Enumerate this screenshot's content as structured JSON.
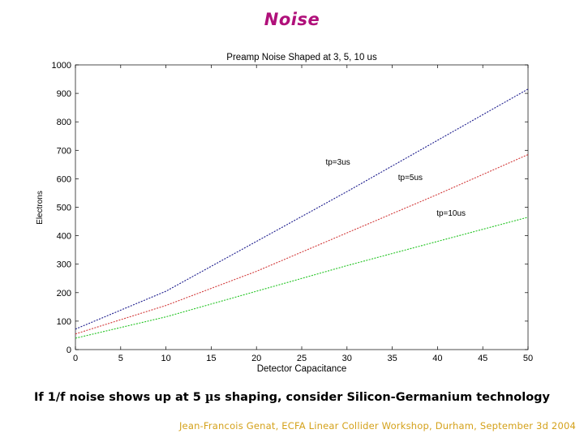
{
  "slide": {
    "title": "Noise",
    "caption_before": "If 1/f noise shows up at 5 ",
    "caption_mu": "µ",
    "caption_after": "s shaping, consider Silicon-Germanium technology",
    "footer": "Jean-Francois Genat, ECFA Linear Collider Workshop, Durham, September 3d 2004"
  },
  "colors": {
    "title": "#b0107a",
    "footer": "#d4a11a",
    "tp3": "#1a1a8c",
    "tp5": "#d23a3a",
    "tp10": "#22c422"
  },
  "chart_data": {
    "type": "line",
    "title": "Preamp  Noise Shaped at 3, 5, 10 us",
    "xlabel": "Detector Capacitance",
    "ylabel": "Electrons",
    "xlim": [
      0,
      50
    ],
    "ylim": [
      0,
      1000
    ],
    "xticks": [
      0,
      5,
      10,
      15,
      20,
      25,
      30,
      35,
      40,
      45,
      50
    ],
    "yticks": [
      0,
      100,
      200,
      300,
      400,
      500,
      600,
      700,
      800,
      900,
      1000
    ],
    "grid": false,
    "series": [
      {
        "name": "tp=3us",
        "label": "tp=3us",
        "color": "#1a1a8c",
        "x": [
          0,
          10,
          20,
          30,
          40,
          50
        ],
        "y": [
          72,
          205,
          380,
          555,
          735,
          915
        ]
      },
      {
        "name": "tp=5us",
        "label": "tp=5us",
        "color": "#d23a3a",
        "x": [
          0,
          10,
          20,
          30,
          40,
          50
        ],
        "y": [
          55,
          155,
          275,
          410,
          545,
          685
        ]
      },
      {
        "name": "tp=10us",
        "label": "tp=10us",
        "color": "#22c422",
        "x": [
          0,
          10,
          20,
          30,
          40,
          50
        ],
        "y": [
          40,
          115,
          205,
          295,
          380,
          465
        ]
      }
    ]
  }
}
